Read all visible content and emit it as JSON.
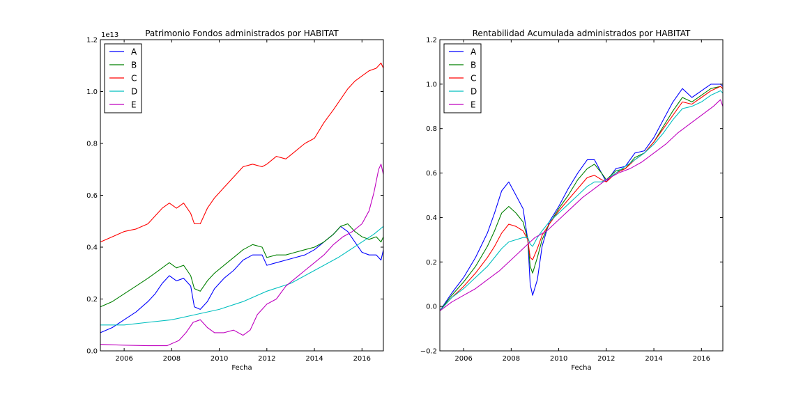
{
  "colors": {
    "A": "#0000ff",
    "B": "#008000",
    "C": "#ff0000",
    "D": "#00bfbf",
    "E": "#bf00bf"
  },
  "chart_data": [
    {
      "type": "line",
      "title": "Patrimonio Fondos administrados por HABITAT",
      "xlabel": "Fecha",
      "ylabel": "",
      "offset_label": "1e13",
      "xlim": [
        2005.0,
        2016.9
      ],
      "ylim": [
        0.0,
        1.2
      ],
      "xticks": [
        2006,
        2008,
        2010,
        2012,
        2014,
        2016
      ],
      "xtick_labels": [
        "2006",
        "2008",
        "2010",
        "2012",
        "2014",
        "2016"
      ],
      "yticks": [
        0.0,
        0.2,
        0.4,
        0.6,
        0.8,
        1.0,
        1.2
      ],
      "ytick_labels": [
        "0.0",
        "0.2",
        "0.4",
        "0.6",
        "0.8",
        "1.0",
        "1.2"
      ],
      "legend": "top-left",
      "grid": false,
      "series": [
        {
          "name": "A",
          "color": "#0000ff",
          "x": [
            2005.0,
            2005.5,
            2006.0,
            2006.5,
            2007.0,
            2007.3,
            2007.6,
            2007.9,
            2008.2,
            2008.5,
            2008.8,
            2008.95,
            2009.2,
            2009.5,
            2009.8,
            2010.2,
            2010.6,
            2011.0,
            2011.4,
            2011.8,
            2012.0,
            2012.4,
            2012.8,
            2013.2,
            2013.6,
            2014.0,
            2014.4,
            2014.8,
            2015.1,
            2015.4,
            2015.7,
            2016.0,
            2016.3,
            2016.6,
            2016.8,
            2016.9
          ],
          "y": [
            0.07,
            0.09,
            0.12,
            0.15,
            0.19,
            0.22,
            0.26,
            0.29,
            0.27,
            0.28,
            0.25,
            0.17,
            0.16,
            0.19,
            0.24,
            0.28,
            0.31,
            0.35,
            0.37,
            0.37,
            0.33,
            0.34,
            0.35,
            0.36,
            0.37,
            0.39,
            0.42,
            0.45,
            0.48,
            0.46,
            0.42,
            0.38,
            0.37,
            0.37,
            0.35,
            0.39
          ]
        },
        {
          "name": "B",
          "color": "#008000",
          "x": [
            2005.0,
            2005.5,
            2006.0,
            2006.5,
            2007.0,
            2007.3,
            2007.6,
            2007.9,
            2008.2,
            2008.5,
            2008.8,
            2008.95,
            2009.2,
            2009.5,
            2009.8,
            2010.2,
            2010.6,
            2011.0,
            2011.4,
            2011.8,
            2012.0,
            2012.4,
            2012.8,
            2013.2,
            2013.6,
            2014.0,
            2014.4,
            2014.8,
            2015.1,
            2015.4,
            2015.7,
            2016.0,
            2016.3,
            2016.6,
            2016.8,
            2016.9
          ],
          "y": [
            0.17,
            0.19,
            0.22,
            0.25,
            0.28,
            0.3,
            0.32,
            0.34,
            0.32,
            0.33,
            0.29,
            0.24,
            0.23,
            0.27,
            0.3,
            0.33,
            0.36,
            0.39,
            0.41,
            0.4,
            0.36,
            0.37,
            0.37,
            0.38,
            0.39,
            0.4,
            0.42,
            0.45,
            0.48,
            0.49,
            0.46,
            0.44,
            0.43,
            0.44,
            0.42,
            0.44
          ]
        },
        {
          "name": "C",
          "color": "#ff0000",
          "x": [
            2005.0,
            2005.5,
            2006.0,
            2006.5,
            2007.0,
            2007.3,
            2007.6,
            2007.9,
            2008.2,
            2008.5,
            2008.8,
            2008.95,
            2009.2,
            2009.5,
            2009.8,
            2010.2,
            2010.6,
            2011.0,
            2011.4,
            2011.8,
            2012.0,
            2012.4,
            2012.8,
            2013.2,
            2013.6,
            2014.0,
            2014.4,
            2014.8,
            2015.1,
            2015.4,
            2015.7,
            2016.0,
            2016.3,
            2016.6,
            2016.8,
            2016.9
          ],
          "y": [
            0.42,
            0.44,
            0.46,
            0.47,
            0.49,
            0.52,
            0.55,
            0.57,
            0.55,
            0.57,
            0.53,
            0.49,
            0.49,
            0.55,
            0.59,
            0.63,
            0.67,
            0.71,
            0.72,
            0.71,
            0.72,
            0.75,
            0.74,
            0.77,
            0.8,
            0.82,
            0.88,
            0.93,
            0.97,
            1.01,
            1.04,
            1.06,
            1.08,
            1.09,
            1.11,
            1.09
          ]
        },
        {
          "name": "D",
          "color": "#00bfbf",
          "x": [
            2005.0,
            2006.0,
            2007.0,
            2008.0,
            2009.0,
            2010.0,
            2011.0,
            2012.0,
            2013.0,
            2014.0,
            2015.0,
            2016.0,
            2016.5,
            2016.9
          ],
          "y": [
            0.1,
            0.1,
            0.11,
            0.12,
            0.14,
            0.16,
            0.19,
            0.23,
            0.26,
            0.31,
            0.36,
            0.42,
            0.45,
            0.48
          ]
        },
        {
          "name": "E",
          "color": "#bf00bf",
          "x": [
            2005.0,
            2006.0,
            2007.0,
            2007.8,
            2008.3,
            2008.6,
            2008.9,
            2009.2,
            2009.5,
            2009.8,
            2010.2,
            2010.6,
            2011.0,
            2011.3,
            2011.6,
            2012.0,
            2012.4,
            2012.8,
            2013.2,
            2013.6,
            2014.0,
            2014.4,
            2014.8,
            2015.2,
            2015.6,
            2016.0,
            2016.3,
            2016.5,
            2016.7,
            2016.8,
            2016.9
          ],
          "y": [
            0.025,
            0.022,
            0.02,
            0.02,
            0.04,
            0.07,
            0.11,
            0.12,
            0.09,
            0.07,
            0.07,
            0.08,
            0.06,
            0.08,
            0.14,
            0.18,
            0.2,
            0.25,
            0.28,
            0.31,
            0.34,
            0.37,
            0.41,
            0.44,
            0.46,
            0.49,
            0.54,
            0.61,
            0.7,
            0.72,
            0.68
          ]
        }
      ]
    },
    {
      "type": "line",
      "title": "Rentabilidad Acumulada administrados por HABITAT",
      "xlabel": "Fecha",
      "ylabel": "",
      "xlim": [
        2005.0,
        2016.9
      ],
      "ylim": [
        -0.2,
        1.2
      ],
      "xticks": [
        2006,
        2008,
        2010,
        2012,
        2014,
        2016
      ],
      "xtick_labels": [
        "2006",
        "2008",
        "2010",
        "2012",
        "2014",
        "2016"
      ],
      "yticks": [
        -0.2,
        0.0,
        0.2,
        0.4,
        0.6,
        0.8,
        1.0,
        1.2
      ],
      "ytick_labels": [
        "−0.2",
        "0.0",
        "0.2",
        "0.4",
        "0.6",
        "0.8",
        "1.0",
        "1.2"
      ],
      "legend": "top-left",
      "grid": false,
      "series": [
        {
          "name": "A",
          "color": "#0000ff",
          "x": [
            2005.0,
            2005.5,
            2006.0,
            2006.5,
            2007.0,
            2007.3,
            2007.6,
            2007.9,
            2008.2,
            2008.5,
            2008.7,
            2008.8,
            2008.9,
            2009.1,
            2009.3,
            2009.6,
            2010.0,
            2010.4,
            2010.8,
            2011.2,
            2011.5,
            2011.8,
            2012.0,
            2012.4,
            2012.8,
            2013.2,
            2013.6,
            2014.0,
            2014.4,
            2014.8,
            2015.2,
            2015.6,
            2016.0,
            2016.4,
            2016.8,
            2016.9
          ],
          "y": [
            -0.02,
            0.06,
            0.13,
            0.22,
            0.33,
            0.42,
            0.52,
            0.56,
            0.5,
            0.44,
            0.3,
            0.1,
            0.05,
            0.12,
            0.27,
            0.38,
            0.45,
            0.53,
            0.6,
            0.66,
            0.66,
            0.6,
            0.56,
            0.62,
            0.63,
            0.69,
            0.7,
            0.76,
            0.84,
            0.92,
            0.98,
            0.94,
            0.97,
            1.0,
            1.0,
            0.99
          ]
        },
        {
          "name": "B",
          "color": "#008000",
          "x": [
            2005.0,
            2005.5,
            2006.0,
            2006.5,
            2007.0,
            2007.3,
            2007.6,
            2007.9,
            2008.2,
            2008.5,
            2008.7,
            2008.8,
            2008.9,
            2009.1,
            2009.3,
            2009.6,
            2010.0,
            2010.4,
            2010.8,
            2011.2,
            2011.5,
            2011.8,
            2012.0,
            2012.4,
            2012.8,
            2013.2,
            2013.6,
            2014.0,
            2014.4,
            2014.8,
            2015.2,
            2015.6,
            2016.0,
            2016.4,
            2016.8,
            2016.9
          ],
          "y": [
            -0.02,
            0.05,
            0.11,
            0.18,
            0.27,
            0.34,
            0.42,
            0.45,
            0.42,
            0.38,
            0.3,
            0.18,
            0.15,
            0.22,
            0.3,
            0.37,
            0.44,
            0.5,
            0.57,
            0.62,
            0.64,
            0.6,
            0.57,
            0.61,
            0.62,
            0.67,
            0.69,
            0.74,
            0.81,
            0.88,
            0.94,
            0.92,
            0.95,
            0.98,
            0.99,
            0.98
          ]
        },
        {
          "name": "C",
          "color": "#ff0000",
          "x": [
            2005.0,
            2005.5,
            2006.0,
            2006.5,
            2007.0,
            2007.3,
            2007.6,
            2007.9,
            2008.2,
            2008.5,
            2008.7,
            2008.8,
            2008.9,
            2009.1,
            2009.3,
            2009.6,
            2010.0,
            2010.4,
            2010.8,
            2011.2,
            2011.5,
            2011.8,
            2012.0,
            2012.4,
            2012.8,
            2013.2,
            2013.6,
            2014.0,
            2014.4,
            2014.8,
            2015.2,
            2015.6,
            2016.0,
            2016.4,
            2016.8,
            2016.9
          ],
          "y": [
            -0.02,
            0.04,
            0.09,
            0.15,
            0.22,
            0.27,
            0.33,
            0.37,
            0.36,
            0.34,
            0.3,
            0.22,
            0.21,
            0.26,
            0.32,
            0.37,
            0.43,
            0.48,
            0.53,
            0.58,
            0.59,
            0.57,
            0.56,
            0.6,
            0.62,
            0.66,
            0.69,
            0.74,
            0.8,
            0.86,
            0.92,
            0.91,
            0.94,
            0.97,
            0.99,
            0.98
          ]
        },
        {
          "name": "D",
          "color": "#00bfbf",
          "x": [
            2005.0,
            2005.5,
            2006.0,
            2006.5,
            2007.0,
            2007.3,
            2007.6,
            2007.9,
            2008.2,
            2008.5,
            2008.7,
            2008.8,
            2008.9,
            2009.1,
            2009.3,
            2009.6,
            2010.0,
            2010.4,
            2010.8,
            2011.2,
            2011.5,
            2011.8,
            2012.0,
            2012.4,
            2012.8,
            2013.2,
            2013.6,
            2014.0,
            2014.4,
            2014.8,
            2015.2,
            2015.6,
            2016.0,
            2016.4,
            2016.8,
            2016.9
          ],
          "y": [
            -0.02,
            0.04,
            0.08,
            0.13,
            0.18,
            0.22,
            0.26,
            0.29,
            0.3,
            0.31,
            0.31,
            0.28,
            0.27,
            0.31,
            0.34,
            0.38,
            0.42,
            0.46,
            0.5,
            0.54,
            0.56,
            0.56,
            0.57,
            0.6,
            0.63,
            0.66,
            0.69,
            0.73,
            0.78,
            0.84,
            0.89,
            0.9,
            0.92,
            0.95,
            0.97,
            0.96
          ]
        },
        {
          "name": "E",
          "color": "#bf00bf",
          "x": [
            2005.0,
            2005.5,
            2006.0,
            2006.5,
            2007.0,
            2007.5,
            2008.0,
            2008.5,
            2008.8,
            2009.0,
            2009.5,
            2010.0,
            2010.5,
            2011.0,
            2011.5,
            2012.0,
            2012.5,
            2013.0,
            2013.5,
            2014.0,
            2014.5,
            2015.0,
            2015.5,
            2016.0,
            2016.5,
            2016.8,
            2016.9
          ],
          "y": [
            -0.02,
            0.02,
            0.05,
            0.08,
            0.12,
            0.16,
            0.21,
            0.26,
            0.29,
            0.31,
            0.34,
            0.39,
            0.44,
            0.49,
            0.53,
            0.57,
            0.6,
            0.62,
            0.65,
            0.69,
            0.73,
            0.78,
            0.82,
            0.86,
            0.9,
            0.93,
            0.9
          ]
        }
      ]
    }
  ]
}
